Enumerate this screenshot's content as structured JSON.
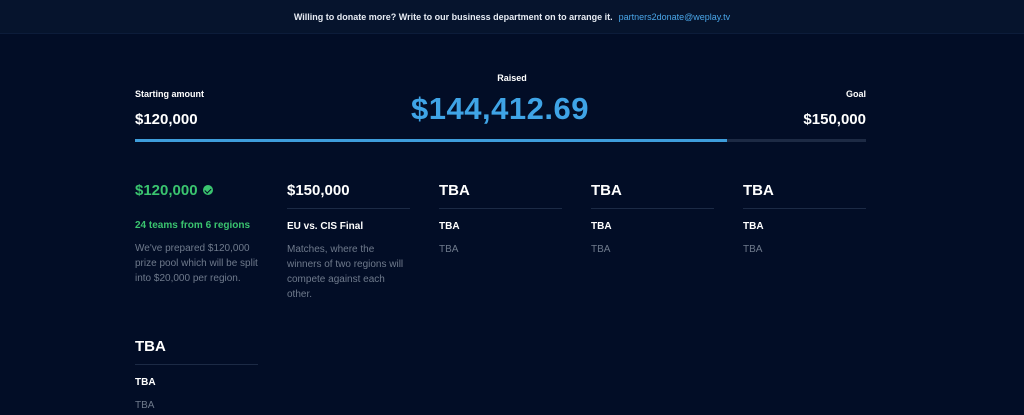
{
  "banner": {
    "text": "Willing to donate more? Write to our business department on to arrange it.",
    "email": "partners2donate@weplay.tv"
  },
  "fundraising": {
    "starting_label": "Starting amount",
    "starting_amount": "$120,000",
    "raised_label": "Raised",
    "raised_amount": "$144,412.69",
    "goal_label": "Goal",
    "goal_amount": "$150,000",
    "progress_fraction": 0.81
  },
  "tiers": [
    {
      "title": "$120,000",
      "achieved": true,
      "subtitle": "24 teams from 6 regions",
      "description": "We've prepared $120,000 prize pool which will be split into $20,000 per region."
    },
    {
      "title": "$150,000",
      "achieved": false,
      "subtitle": "EU vs. CIS Final",
      "description": "Matches, where the winners of two regions will compete against each other."
    },
    {
      "title": "TBA",
      "achieved": false,
      "subtitle": "TBA",
      "description": "TBA"
    },
    {
      "title": "TBA",
      "achieved": false,
      "subtitle": "TBA",
      "description": "TBA"
    },
    {
      "title": "TBA",
      "achieved": false,
      "subtitle": "TBA",
      "description": "TBA"
    },
    {
      "title": "TBA",
      "achieved": false,
      "subtitle": "TBA",
      "description": "TBA"
    }
  ],
  "colors": {
    "background": "#020d26",
    "accent": "#3fa4e6",
    "success": "#3ac46f"
  }
}
